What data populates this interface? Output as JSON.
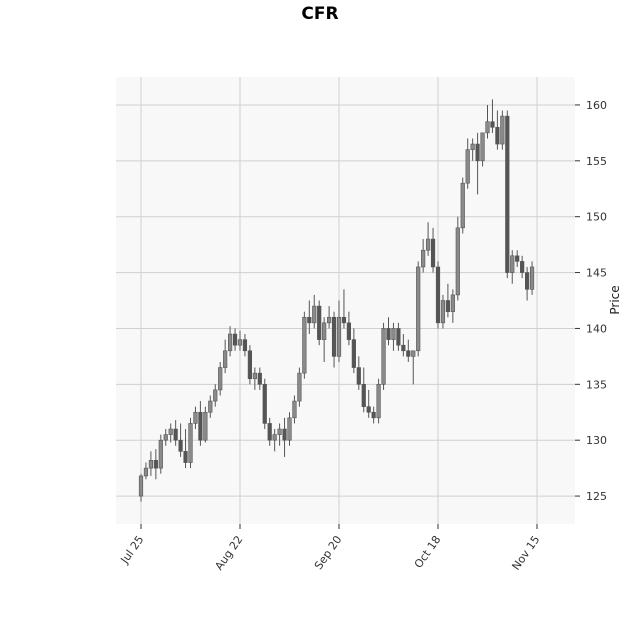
{
  "chart_data": {
    "type": "candlestick",
    "title": "CFR",
    "ylabel": "Price",
    "ylim": [
      122.5,
      162.5
    ],
    "yticks": [
      125,
      130,
      135,
      140,
      145,
      150,
      155,
      160
    ],
    "xtick_labels": [
      {
        "index": 0,
        "label": "Jul 25"
      },
      {
        "index": 20,
        "label": "Aug 22"
      },
      {
        "index": 40,
        "label": "Sep 20"
      },
      {
        "index": 60,
        "label": "Oct 18"
      },
      {
        "index": 80,
        "label": "Nov 15"
      }
    ],
    "grid": true,
    "colors": {
      "candle": "#555555",
      "grid": "#d0d0d0",
      "plot_bg": "#f8f8f8"
    },
    "ohlc": [
      [
        125.0,
        127.0,
        124.5,
        126.8
      ],
      [
        126.8,
        128.0,
        126.5,
        127.5
      ],
      [
        127.5,
        129.0,
        126.8,
        128.2
      ],
      [
        128.2,
        129.2,
        126.5,
        127.5
      ],
      [
        127.5,
        130.5,
        127.0,
        130.0
      ],
      [
        130.0,
        131.0,
        129.5,
        130.5
      ],
      [
        130.5,
        131.5,
        129.8,
        131.0
      ],
      [
        131.0,
        131.8,
        129.5,
        130.0
      ],
      [
        130.0,
        131.5,
        128.5,
        129.0
      ],
      [
        129.0,
        131.0,
        127.5,
        128.0
      ],
      [
        128.0,
        132.0,
        127.5,
        131.5
      ],
      [
        131.5,
        133.0,
        131.0,
        132.5
      ],
      [
        132.5,
        133.5,
        129.5,
        130.0
      ],
      [
        130.0,
        133.0,
        129.8,
        132.5
      ],
      [
        132.5,
        134.0,
        132.0,
        133.5
      ],
      [
        133.5,
        135.0,
        133.0,
        134.5
      ],
      [
        134.5,
        137.0,
        134.0,
        136.5
      ],
      [
        136.5,
        139.0,
        136.0,
        138.0
      ],
      [
        138.0,
        140.2,
        137.5,
        139.5
      ],
      [
        139.5,
        140.0,
        138.0,
        138.5
      ],
      [
        138.5,
        139.8,
        138.0,
        139.0
      ],
      [
        139.0,
        139.5,
        137.5,
        138.0
      ],
      [
        138.0,
        138.5,
        135.0,
        135.5
      ],
      [
        135.5,
        136.5,
        134.5,
        136.0
      ],
      [
        136.0,
        136.5,
        134.5,
        135.0
      ],
      [
        135.0,
        135.5,
        131.0,
        131.5
      ],
      [
        131.5,
        132.0,
        129.5,
        130.0
      ],
      [
        130.0,
        131.0,
        129.0,
        130.5
      ],
      [
        130.5,
        131.5,
        129.5,
        131.0
      ],
      [
        131.0,
        132.0,
        128.5,
        130.0
      ],
      [
        130.0,
        132.5,
        129.5,
        132.0
      ],
      [
        132.0,
        134.0,
        131.5,
        133.5
      ],
      [
        133.5,
        136.5,
        133.0,
        136.0
      ],
      [
        136.0,
        141.5,
        135.5,
        141.0
      ],
      [
        141.0,
        142.5,
        139.5,
        140.5
      ],
      [
        140.5,
        143.0,
        140.0,
        142.0
      ],
      [
        142.0,
        142.5,
        138.5,
        139.0
      ],
      [
        139.0,
        141.0,
        137.0,
        140.5
      ],
      [
        140.5,
        142.0,
        140.0,
        141.0
      ],
      [
        141.0,
        141.5,
        136.5,
        137.5
      ],
      [
        137.5,
        142.5,
        137.0,
        141.0
      ],
      [
        141.0,
        143.5,
        140.0,
        140.5
      ],
      [
        140.5,
        141.5,
        138.5,
        139.0
      ],
      [
        139.0,
        140.0,
        136.0,
        136.5
      ],
      [
        136.5,
        137.5,
        134.5,
        135.0
      ],
      [
        135.0,
        136.5,
        132.5,
        133.0
      ],
      [
        133.0,
        134.5,
        132.0,
        132.5
      ],
      [
        132.5,
        133.0,
        131.5,
        132.0
      ],
      [
        132.0,
        135.5,
        131.5,
        135.0
      ],
      [
        135.0,
        140.5,
        134.5,
        140.0
      ],
      [
        140.0,
        141.0,
        138.5,
        139.0
      ],
      [
        139.0,
        140.5,
        138.0,
        140.0
      ],
      [
        140.0,
        140.5,
        138.0,
        138.5
      ],
      [
        138.5,
        139.5,
        137.5,
        138.0
      ],
      [
        138.0,
        139.0,
        137.0,
        137.5
      ],
      [
        137.5,
        138.0,
        135.0,
        138.0
      ],
      [
        138.0,
        146.0,
        137.5,
        145.5
      ],
      [
        145.5,
        148.0,
        145.0,
        147.0
      ],
      [
        147.0,
        149.5,
        146.5,
        148.0
      ],
      [
        148.0,
        149.0,
        145.0,
        145.5
      ],
      [
        145.5,
        146.0,
        140.0,
        140.5
      ],
      [
        140.5,
        143.0,
        140.0,
        142.5
      ],
      [
        142.5,
        144.0,
        141.0,
        141.5
      ],
      [
        141.5,
        143.5,
        140.5,
        143.0
      ],
      [
        143.0,
        150.0,
        142.5,
        149.0
      ],
      [
        149.0,
        153.5,
        148.5,
        153.0
      ],
      [
        153.0,
        157.0,
        152.5,
        156.0
      ],
      [
        156.0,
        157.0,
        155.0,
        156.5
      ],
      [
        156.5,
        157.5,
        152.0,
        155.0
      ],
      [
        155.0,
        157.5,
        154.5,
        157.5
      ],
      [
        157.5,
        160.0,
        157.0,
        158.5
      ],
      [
        158.5,
        160.5,
        157.5,
        158.0
      ],
      [
        158.0,
        159.5,
        156.0,
        156.5
      ],
      [
        156.5,
        159.5,
        156.0,
        159.0
      ],
      [
        159.0,
        159.5,
        144.5,
        145.0
      ],
      [
        145.0,
        147.0,
        144.0,
        146.5
      ],
      [
        146.5,
        147.0,
        145.5,
        146.0
      ],
      [
        146.0,
        146.5,
        144.5,
        145.0
      ],
      [
        145.0,
        145.5,
        142.5,
        143.5
      ],
      [
        143.5,
        146.0,
        143.0,
        145.5
      ]
    ]
  }
}
